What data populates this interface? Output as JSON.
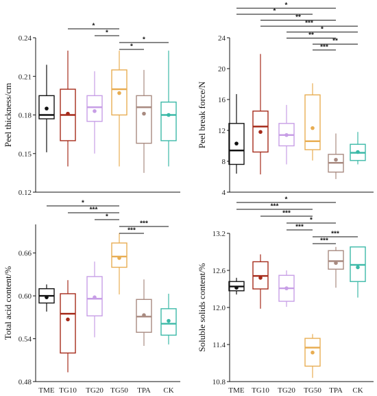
{
  "groups": [
    "TME",
    "TG10",
    "TG20",
    "TG50",
    "TPA",
    "CK"
  ],
  "colors": {
    "TME": "#111111",
    "TG10": "#a52a1a",
    "TG20": "#c79ee6",
    "TG50": "#e8ad52",
    "TPA": "#a88a80",
    "CK": "#3bb9a7"
  },
  "chart_data": [
    {
      "type": "box",
      "ylabel": "Peel thickness/cm",
      "ylim": [
        0.12,
        0.24
      ],
      "yticks": [
        "0.12",
        "0.15",
        "0.18",
        "0.21",
        "0.24"
      ],
      "xticks_shown": false,
      "boxes": [
        {
          "group": "TME",
          "whisker_low": 0.151,
          "q1": 0.177,
          "median": 0.18,
          "q3": 0.195,
          "whisker_high": 0.219,
          "mean": 0.185
        },
        {
          "group": "TG10",
          "whisker_low": 0.14,
          "q1": 0.16,
          "median": 0.18,
          "q3": 0.2,
          "whisker_high": 0.23,
          "mean": 0.181
        },
        {
          "group": "TG20",
          "whisker_low": 0.15,
          "q1": 0.175,
          "median": 0.186,
          "q3": 0.195,
          "whisker_high": 0.214,
          "mean": 0.183
        },
        {
          "group": "TG50",
          "whisker_low": 0.14,
          "q1": 0.18,
          "median": 0.2,
          "q3": 0.215,
          "whisker_high": 0.23,
          "mean": 0.197
        },
        {
          "group": "TPA",
          "whisker_low": 0.135,
          "q1": 0.158,
          "median": 0.186,
          "q3": 0.195,
          "whisker_high": 0.215,
          "mean": 0.181
        },
        {
          "group": "CK",
          "whisker_low": 0.14,
          "q1": 0.16,
          "median": 0.18,
          "q3": 0.19,
          "whisker_high": 0.23,
          "mean": 0.18
        }
      ],
      "significance": [
        {
          "from": "TG10",
          "to": "TG50",
          "label": "*"
        },
        {
          "from": "TG20",
          "to": "TG50",
          "label": "*"
        },
        {
          "from": "TG50",
          "to": "CK",
          "label": "*"
        },
        {
          "from": "TG50",
          "to": "TPA",
          "label": "*"
        }
      ]
    },
    {
      "type": "box",
      "ylabel": "Peel break force/N",
      "ylim": [
        4,
        24
      ],
      "yticks": [
        "4",
        "8",
        "12",
        "16",
        "20",
        "24"
      ],
      "xticks_shown": false,
      "boxes": [
        {
          "group": "TME",
          "whisker_low": 6.4,
          "q1": 7.6,
          "median": 9.4,
          "q3": 12.9,
          "whisker_high": 16.7,
          "mean": 10.3
        },
        {
          "group": "TG10",
          "whisker_low": 6.3,
          "q1": 9.2,
          "median": 12.5,
          "q3": 14.5,
          "whisker_high": 21.9,
          "mean": 11.8
        },
        {
          "group": "TG20",
          "whisker_low": 7.6,
          "q1": 10.0,
          "median": 11.4,
          "q3": 12.9,
          "whisker_high": 15.3,
          "mean": 11.4
        },
        {
          "group": "TG50",
          "whisker_low": 8.1,
          "q1": 9.5,
          "median": 10.6,
          "q3": 16.6,
          "whisker_high": 18.1,
          "mean": 12.3
        },
        {
          "group": "TPA",
          "whisker_low": 5.7,
          "q1": 6.6,
          "median": 7.8,
          "q3": 8.9,
          "whisker_high": 11.6,
          "mean": 8.2
        },
        {
          "group": "CK",
          "whisker_low": 7.6,
          "q1": 8.1,
          "median": 9.1,
          "q3": 10.2,
          "whisker_high": 11.8,
          "mean": 9.2
        }
      ],
      "significance": [
        {
          "from": "TME",
          "to": "TPA",
          "label": "*"
        },
        {
          "from": "TME",
          "to": "TG50",
          "label": "*"
        },
        {
          "from": "TG10",
          "to": "TPA",
          "label": "**"
        },
        {
          "from": "TG10",
          "to": "CK",
          "label": "***"
        },
        {
          "from": "TG20",
          "to": "CK",
          "label": "*"
        },
        {
          "from": "TG20",
          "to": "TPA",
          "label": "**"
        },
        {
          "from": "TG50",
          "to": "CK",
          "label": "**"
        },
        {
          "from": "TG50",
          "to": "TPA",
          "label": "***"
        }
      ]
    },
    {
      "type": "box",
      "ylabel": "Total acid content/%",
      "ylim": [
        0.48,
        0.7
      ],
      "yticks": [
        "0.48",
        "0.54",
        "0.60",
        "0.66"
      ],
      "xticks_shown": true,
      "boxes": [
        {
          "group": "TME",
          "whisker_low": 0.578,
          "q1": 0.59,
          "median": 0.6,
          "q3": 0.61,
          "whisker_high": 0.616,
          "mean": 0.598
        },
        {
          "group": "TG10",
          "whisker_low": 0.493,
          "q1": 0.52,
          "median": 0.575,
          "q3": 0.603,
          "whisker_high": 0.622,
          "mean": 0.567
        },
        {
          "group": "TG20",
          "whisker_low": 0.542,
          "q1": 0.572,
          "median": 0.596,
          "q3": 0.627,
          "whisker_high": 0.648,
          "mean": 0.598
        },
        {
          "group": "TG50",
          "whisker_low": 0.602,
          "q1": 0.64,
          "median": 0.655,
          "q3": 0.674,
          "whisker_high": 0.688,
          "mean": 0.653
        },
        {
          "group": "TPA",
          "whisker_low": 0.53,
          "q1": 0.549,
          "median": 0.571,
          "q3": 0.595,
          "whisker_high": 0.623,
          "mean": 0.573
        },
        {
          "group": "CK",
          "whisker_low": 0.532,
          "q1": 0.545,
          "median": 0.561,
          "q3": 0.582,
          "whisker_high": 0.603,
          "mean": 0.565
        }
      ],
      "significance": [
        {
          "from": "TME",
          "to": "TG50",
          "label": "*"
        },
        {
          "from": "TG10",
          "to": "TG50",
          "label": "***"
        },
        {
          "from": "TG20",
          "to": "TG50",
          "label": "*"
        },
        {
          "from": "TG50",
          "to": "CK",
          "label": "***"
        },
        {
          "from": "TG50",
          "to": "TPA",
          "label": "***"
        }
      ]
    },
    {
      "type": "box",
      "ylabel": "Soluble solids content/%",
      "ylim": [
        10.8,
        13.2
      ],
      "yticks": [
        "10.8",
        "11.4",
        "12.0",
        "12.6",
        "13.2"
      ],
      "xticks_shown": true,
      "boxes": [
        {
          "group": "TME",
          "whisker_low": 12.21,
          "q1": 12.27,
          "median": 12.34,
          "q3": 12.42,
          "whisker_high": 12.48,
          "mean": 12.32
        },
        {
          "group": "TG10",
          "whisker_low": 11.98,
          "q1": 12.3,
          "median": 12.51,
          "q3": 12.74,
          "whisker_high": 12.86,
          "mean": 12.48
        },
        {
          "group": "TG20",
          "whisker_low": 12.01,
          "q1": 12.1,
          "median": 12.31,
          "q3": 12.52,
          "whisker_high": 12.6,
          "mean": 12.31
        },
        {
          "group": "TG50",
          "whisker_low": 10.86,
          "q1": 11.05,
          "median": 11.35,
          "q3": 11.5,
          "whisker_high": 11.57,
          "mean": 11.27
        },
        {
          "group": "TPA",
          "whisker_low": 12.32,
          "q1": 12.62,
          "median": 12.75,
          "q3": 12.92,
          "whisker_high": 12.98,
          "mean": 12.72
        },
        {
          "group": "CK",
          "whisker_low": 12.16,
          "q1": 12.42,
          "median": 12.69,
          "q3": 12.98,
          "whisker_high": 12.98,
          "mean": 12.65
        }
      ],
      "significance": [
        {
          "from": "TME",
          "to": "TPA",
          "label": "*"
        },
        {
          "from": "TME",
          "to": "TG50",
          "label": "***"
        },
        {
          "from": "TG10",
          "to": "TG50",
          "label": "***"
        },
        {
          "from": "TG20",
          "to": "TPA",
          "label": "*"
        },
        {
          "from": "TG20",
          "to": "TG50",
          "label": "***"
        },
        {
          "from": "TG50",
          "to": "CK",
          "label": "***"
        },
        {
          "from": "TG50",
          "to": "TPA",
          "label": "***"
        }
      ]
    }
  ]
}
